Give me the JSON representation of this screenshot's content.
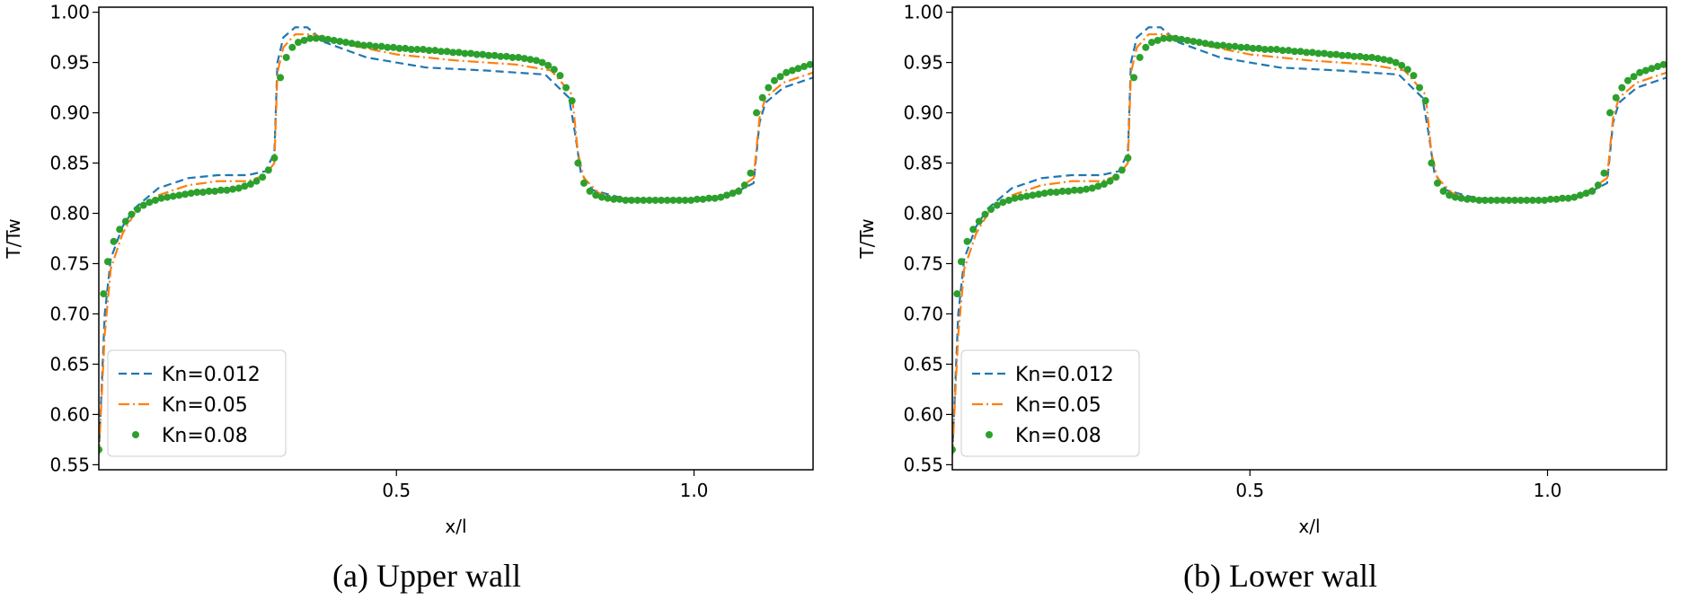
{
  "colors": {
    "kn_0012": "#1f77b4",
    "kn_005": "#ff7f0e",
    "kn_008": "#2ca02c"
  },
  "chart_data": [
    {
      "type": "line",
      "caption": "(a) Upper wall",
      "xlabel": "x/l",
      "ylabel": "T/Tw",
      "xlim": [
        0.0,
        1.2
      ],
      "ylim": [
        0.545,
        1.005
      ],
      "xticks": [
        0.5,
        1.0
      ],
      "yticks": [
        0.55,
        0.6,
        0.65,
        0.7,
        0.75,
        0.8,
        0.85,
        0.9,
        0.95,
        1.0
      ],
      "legend": {
        "position": "lower-left",
        "entries": [
          "Kn=0.012",
          "Kn=0.05",
          "Kn=0.08"
        ]
      },
      "series": [
        {
          "name": "Kn=0.012",
          "style": "dashed",
          "x": [
            0.0,
            0.01,
            0.02,
            0.04,
            0.06,
            0.08,
            0.1,
            0.15,
            0.2,
            0.25,
            0.28,
            0.295,
            0.3,
            0.31,
            0.33,
            0.35,
            0.38,
            0.45,
            0.55,
            0.65,
            0.75,
            0.79,
            0.8,
            0.81,
            0.83,
            0.88,
            0.95,
            1.05,
            1.1,
            1.11,
            1.12,
            1.15,
            1.2
          ],
          "y": [
            0.56,
            0.7,
            0.755,
            0.787,
            0.805,
            0.815,
            0.825,
            0.835,
            0.838,
            0.838,
            0.842,
            0.86,
            0.95,
            0.975,
            0.985,
            0.985,
            0.97,
            0.955,
            0.945,
            0.942,
            0.938,
            0.915,
            0.88,
            0.84,
            0.823,
            0.815,
            0.813,
            0.815,
            0.83,
            0.89,
            0.91,
            0.925,
            0.935
          ]
        },
        {
          "name": "Kn=0.05",
          "style": "dashdot",
          "x": [
            0.0,
            0.01,
            0.02,
            0.04,
            0.06,
            0.08,
            0.1,
            0.15,
            0.2,
            0.25,
            0.28,
            0.295,
            0.3,
            0.31,
            0.33,
            0.36,
            0.4,
            0.5,
            0.6,
            0.7,
            0.76,
            0.795,
            0.805,
            0.815,
            0.84,
            0.88,
            0.95,
            1.05,
            1.1,
            1.11,
            1.12,
            1.15,
            1.2
          ],
          "y": [
            0.56,
            0.68,
            0.745,
            0.78,
            0.8,
            0.81,
            0.818,
            0.828,
            0.832,
            0.832,
            0.838,
            0.85,
            0.94,
            0.965,
            0.978,
            0.978,
            0.97,
            0.958,
            0.952,
            0.948,
            0.942,
            0.918,
            0.86,
            0.835,
            0.82,
            0.814,
            0.812,
            0.815,
            0.835,
            0.895,
            0.915,
            0.93,
            0.94
          ]
        },
        {
          "name": "Kn=0.08",
          "style": "dots",
          "x": [
            0.0,
            0.008,
            0.015,
            0.025,
            0.035,
            0.045,
            0.055,
            0.065,
            0.075,
            0.085,
            0.095,
            0.105,
            0.115,
            0.125,
            0.135,
            0.145,
            0.155,
            0.165,
            0.175,
            0.185,
            0.195,
            0.205,
            0.215,
            0.225,
            0.235,
            0.245,
            0.255,
            0.265,
            0.275,
            0.285,
            0.295,
            0.305,
            0.315,
            0.325,
            0.335,
            0.345,
            0.355,
            0.365,
            0.375,
            0.385,
            0.395,
            0.405,
            0.415,
            0.425,
            0.435,
            0.445,
            0.455,
            0.465,
            0.475,
            0.485,
            0.495,
            0.505,
            0.515,
            0.525,
            0.535,
            0.545,
            0.555,
            0.565,
            0.575,
            0.585,
            0.595,
            0.605,
            0.615,
            0.625,
            0.635,
            0.645,
            0.655,
            0.665,
            0.675,
            0.685,
            0.695,
            0.705,
            0.715,
            0.725,
            0.735,
            0.745,
            0.755,
            0.765,
            0.775,
            0.785,
            0.795,
            0.805,
            0.815,
            0.825,
            0.835,
            0.845,
            0.855,
            0.865,
            0.875,
            0.885,
            0.895,
            0.905,
            0.915,
            0.925,
            0.935,
            0.945,
            0.955,
            0.965,
            0.975,
            0.985,
            0.995,
            1.005,
            1.015,
            1.025,
            1.035,
            1.045,
            1.055,
            1.065,
            1.075,
            1.085,
            1.095,
            1.105,
            1.115,
            1.125,
            1.135,
            1.145,
            1.155,
            1.165,
            1.175,
            1.185,
            1.195
          ],
          "y": [
            0.565,
            0.72,
            0.752,
            0.772,
            0.784,
            0.792,
            0.799,
            0.804,
            0.808,
            0.811,
            0.813,
            0.815,
            0.816,
            0.817,
            0.818,
            0.819,
            0.82,
            0.821,
            0.821,
            0.822,
            0.822,
            0.823,
            0.823,
            0.824,
            0.825,
            0.827,
            0.829,
            0.832,
            0.836,
            0.843,
            0.855,
            0.935,
            0.955,
            0.965,
            0.97,
            0.972,
            0.974,
            0.974,
            0.974,
            0.973,
            0.972,
            0.971,
            0.97,
            0.969,
            0.968,
            0.967,
            0.967,
            0.966,
            0.966,
            0.965,
            0.965,
            0.964,
            0.964,
            0.963,
            0.963,
            0.963,
            0.962,
            0.962,
            0.961,
            0.961,
            0.96,
            0.96,
            0.959,
            0.959,
            0.958,
            0.958,
            0.957,
            0.957,
            0.956,
            0.956,
            0.955,
            0.955,
            0.954,
            0.953,
            0.952,
            0.95,
            0.947,
            0.943,
            0.937,
            0.925,
            0.912,
            0.85,
            0.83,
            0.822,
            0.818,
            0.816,
            0.815,
            0.814,
            0.814,
            0.813,
            0.813,
            0.813,
            0.813,
            0.813,
            0.813,
            0.813,
            0.813,
            0.813,
            0.813,
            0.813,
            0.813,
            0.814,
            0.814,
            0.815,
            0.815,
            0.816,
            0.818,
            0.82,
            0.822,
            0.828,
            0.84,
            0.9,
            0.915,
            0.925,
            0.932,
            0.936,
            0.94,
            0.942,
            0.944,
            0.946,
            0.948
          ]
        }
      ]
    },
    {
      "type": "line",
      "caption": "(b) Lower wall",
      "xlabel": "x/l",
      "ylabel": "T/Tw",
      "xlim": [
        0.0,
        1.2
      ],
      "ylim": [
        0.545,
        1.005
      ],
      "xticks": [
        0.5,
        1.0
      ],
      "yticks": [
        0.55,
        0.6,
        0.65,
        0.7,
        0.75,
        0.8,
        0.85,
        0.9,
        0.95,
        1.0
      ],
      "legend": {
        "position": "lower-left",
        "entries": [
          "Kn=0.012",
          "Kn=0.05",
          "Kn=0.08"
        ]
      },
      "series": [
        {
          "name": "Kn=0.012",
          "style": "dashed",
          "x": [
            0.0,
            0.01,
            0.02,
            0.04,
            0.06,
            0.08,
            0.1,
            0.15,
            0.2,
            0.25,
            0.28,
            0.295,
            0.3,
            0.31,
            0.33,
            0.35,
            0.38,
            0.45,
            0.55,
            0.65,
            0.75,
            0.79,
            0.8,
            0.81,
            0.83,
            0.88,
            0.95,
            1.05,
            1.1,
            1.11,
            1.12,
            1.15,
            1.2
          ],
          "y": [
            0.56,
            0.7,
            0.755,
            0.787,
            0.805,
            0.815,
            0.825,
            0.835,
            0.838,
            0.838,
            0.842,
            0.86,
            0.95,
            0.975,
            0.985,
            0.985,
            0.97,
            0.955,
            0.945,
            0.942,
            0.938,
            0.915,
            0.88,
            0.84,
            0.823,
            0.815,
            0.813,
            0.815,
            0.83,
            0.89,
            0.91,
            0.925,
            0.935
          ]
        },
        {
          "name": "Kn=0.05",
          "style": "dashdot",
          "x": [
            0.0,
            0.01,
            0.02,
            0.04,
            0.06,
            0.08,
            0.1,
            0.15,
            0.2,
            0.25,
            0.28,
            0.295,
            0.3,
            0.31,
            0.33,
            0.36,
            0.4,
            0.5,
            0.6,
            0.7,
            0.76,
            0.795,
            0.805,
            0.815,
            0.84,
            0.88,
            0.95,
            1.05,
            1.1,
            1.11,
            1.12,
            1.15,
            1.2
          ],
          "y": [
            0.56,
            0.68,
            0.745,
            0.78,
            0.8,
            0.81,
            0.818,
            0.828,
            0.832,
            0.832,
            0.838,
            0.85,
            0.94,
            0.965,
            0.978,
            0.978,
            0.97,
            0.958,
            0.952,
            0.948,
            0.942,
            0.918,
            0.86,
            0.835,
            0.82,
            0.814,
            0.812,
            0.815,
            0.835,
            0.895,
            0.915,
            0.93,
            0.94
          ]
        },
        {
          "name": "Kn=0.08",
          "style": "dots",
          "x": [
            0.0,
            0.008,
            0.015,
            0.025,
            0.035,
            0.045,
            0.055,
            0.065,
            0.075,
            0.085,
            0.095,
            0.105,
            0.115,
            0.125,
            0.135,
            0.145,
            0.155,
            0.165,
            0.175,
            0.185,
            0.195,
            0.205,
            0.215,
            0.225,
            0.235,
            0.245,
            0.255,
            0.265,
            0.275,
            0.285,
            0.295,
            0.305,
            0.315,
            0.325,
            0.335,
            0.345,
            0.355,
            0.365,
            0.375,
            0.385,
            0.395,
            0.405,
            0.415,
            0.425,
            0.435,
            0.445,
            0.455,
            0.465,
            0.475,
            0.485,
            0.495,
            0.505,
            0.515,
            0.525,
            0.535,
            0.545,
            0.555,
            0.565,
            0.575,
            0.585,
            0.595,
            0.605,
            0.615,
            0.625,
            0.635,
            0.645,
            0.655,
            0.665,
            0.675,
            0.685,
            0.695,
            0.705,
            0.715,
            0.725,
            0.735,
            0.745,
            0.755,
            0.765,
            0.775,
            0.785,
            0.795,
            0.805,
            0.815,
            0.825,
            0.835,
            0.845,
            0.855,
            0.865,
            0.875,
            0.885,
            0.895,
            0.905,
            0.915,
            0.925,
            0.935,
            0.945,
            0.955,
            0.965,
            0.975,
            0.985,
            0.995,
            1.005,
            1.015,
            1.025,
            1.035,
            1.045,
            1.055,
            1.065,
            1.075,
            1.085,
            1.095,
            1.105,
            1.115,
            1.125,
            1.135,
            1.145,
            1.155,
            1.165,
            1.175,
            1.185,
            1.195
          ],
          "y": [
            0.565,
            0.72,
            0.752,
            0.772,
            0.784,
            0.792,
            0.799,
            0.804,
            0.808,
            0.811,
            0.813,
            0.815,
            0.816,
            0.817,
            0.818,
            0.819,
            0.82,
            0.821,
            0.821,
            0.822,
            0.822,
            0.823,
            0.823,
            0.824,
            0.825,
            0.827,
            0.829,
            0.832,
            0.836,
            0.843,
            0.855,
            0.935,
            0.955,
            0.965,
            0.97,
            0.972,
            0.974,
            0.974,
            0.974,
            0.973,
            0.972,
            0.971,
            0.97,
            0.969,
            0.968,
            0.967,
            0.967,
            0.966,
            0.966,
            0.965,
            0.965,
            0.964,
            0.964,
            0.963,
            0.963,
            0.963,
            0.962,
            0.962,
            0.961,
            0.961,
            0.96,
            0.96,
            0.959,
            0.959,
            0.958,
            0.958,
            0.957,
            0.957,
            0.956,
            0.956,
            0.955,
            0.955,
            0.954,
            0.953,
            0.952,
            0.95,
            0.947,
            0.943,
            0.937,
            0.925,
            0.912,
            0.85,
            0.83,
            0.822,
            0.818,
            0.816,
            0.815,
            0.814,
            0.814,
            0.813,
            0.813,
            0.813,
            0.813,
            0.813,
            0.813,
            0.813,
            0.813,
            0.813,
            0.813,
            0.813,
            0.813,
            0.814,
            0.814,
            0.815,
            0.815,
            0.816,
            0.818,
            0.82,
            0.822,
            0.828,
            0.84,
            0.9,
            0.915,
            0.925,
            0.932,
            0.936,
            0.94,
            0.942,
            0.944,
            0.946,
            0.948
          ]
        }
      ]
    }
  ]
}
